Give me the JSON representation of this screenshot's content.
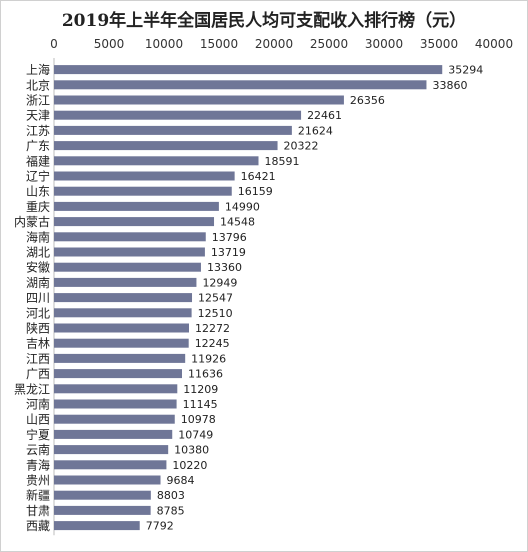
{
  "chart_data": {
    "type": "bar",
    "orientation": "horizontal",
    "title": "2019年上半年全国居民人均可支配收入排行榜（元）",
    "xlim": [
      0,
      40000
    ],
    "xticks": [
      0,
      5000,
      10000,
      15000,
      20000,
      25000,
      30000,
      35000,
      40000
    ],
    "axis_position": "top",
    "grid": false,
    "legend": "none",
    "bar_color": "#6f7697",
    "categories": [
      "上海",
      "北京",
      "浙江",
      "天津",
      "江苏",
      "广东",
      "福建",
      "辽宁",
      "山东",
      "重庆",
      "内蒙古",
      "海南",
      "湖北",
      "安徽",
      "湖南",
      "四川",
      "河北",
      "陕西",
      "吉林",
      "江西",
      "广西",
      "黑龙江",
      "河南",
      "山西",
      "宁夏",
      "云南",
      "青海",
      "贵州",
      "新疆",
      "甘肃",
      "西藏"
    ],
    "values": [
      35294,
      33860,
      26356,
      22461,
      21624,
      20322,
      18591,
      16421,
      16159,
      14990,
      14548,
      13796,
      13719,
      13360,
      12949,
      12547,
      12510,
      12272,
      12245,
      11926,
      11636,
      11209,
      11145,
      10978,
      10749,
      10380,
      10220,
      9684,
      8803,
      8785,
      7792
    ],
    "value_labels": [
      "35294",
      "33860",
      "26356",
      "22461",
      "21624",
      "20322",
      "18591",
      "16421",
      "16159",
      "14990",
      "14548",
      "13796",
      "13719",
      "13360",
      "12949",
      "12547",
      "12510",
      "12272",
      "12245",
      "11926",
      "11636",
      "11209",
      "11145",
      "10978",
      "10749",
      "10380",
      "10220",
      "9684",
      "8803",
      "8785",
      "7792"
    ]
  }
}
